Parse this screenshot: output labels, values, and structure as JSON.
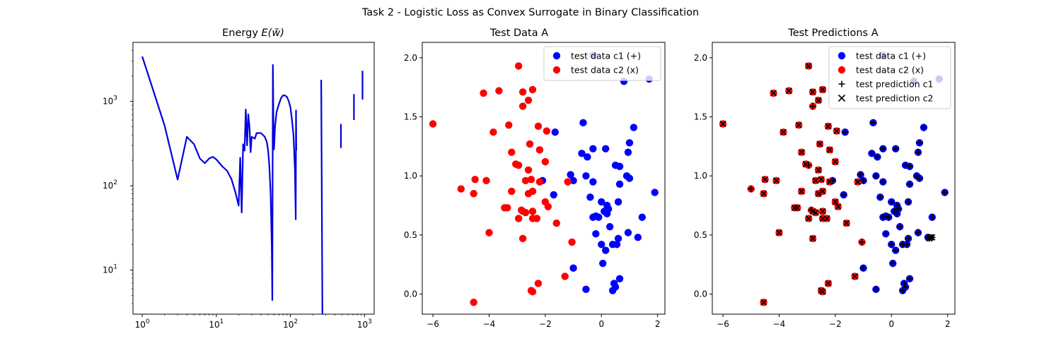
{
  "figure": {
    "suptitle": "Task 2 - Logistic Loss as Convex Surrogate in Binary Classification"
  },
  "colors": {
    "c1": "#0000ff",
    "c2": "#ff0000",
    "pred": "#000000",
    "energy": "#0000dd"
  },
  "chart_data": [
    {
      "type": "line",
      "title": "Energy E(w̃)",
      "title_main": "Energy ",
      "title_math": "E(w̃)",
      "xscale": "log",
      "yscale": "log",
      "xlim": [
        0.75,
        1350
      ],
      "ylim": [
        3,
        5000
      ],
      "xticks": [
        1,
        10,
        100,
        1000
      ],
      "xtick_labels": [
        {
          "b": "10",
          "e": "0"
        },
        {
          "b": "10",
          "e": "1"
        },
        {
          "b": "10",
          "e": "2"
        },
        {
          "b": "10",
          "e": "3"
        }
      ],
      "yticks": [
        10,
        100,
        1000
      ],
      "ytick_labels": [
        {
          "b": "10",
          "e": "1"
        },
        {
          "b": "10",
          "e": "2"
        },
        {
          "b": "10",
          "e": "3"
        }
      ],
      "segments": [
        [
          [
            1,
            3400
          ],
          [
            2,
            520
          ],
          [
            3,
            118
          ],
          [
            4,
            380
          ],
          [
            5,
            310
          ],
          [
            6,
            210
          ],
          [
            7,
            185
          ],
          [
            8,
            210
          ],
          [
            9,
            220
          ],
          [
            10,
            205
          ],
          [
            12,
            170
          ],
          [
            14,
            150
          ],
          [
            16,
            120
          ],
          [
            18,
            85
          ],
          [
            20,
            58
          ],
          [
            21,
            215
          ],
          [
            22,
            48
          ],
          [
            23,
            310
          ],
          [
            24,
            260
          ],
          [
            25,
            800
          ],
          [
            26,
            300
          ],
          [
            27,
            700
          ],
          [
            28,
            500
          ],
          [
            29,
            250
          ],
          [
            30,
            380
          ],
          [
            33,
            360
          ],
          [
            35,
            420
          ],
          [
            40,
            420
          ],
          [
            45,
            380
          ],
          [
            48,
            330
          ],
          [
            50,
            260
          ],
          [
            52,
            170
          ],
          [
            54,
            80
          ],
          [
            56,
            20
          ],
          [
            57,
            4.4
          ],
          [
            58,
            2700
          ],
          [
            59,
            500
          ],
          [
            60,
            270
          ],
          [
            62,
            500
          ],
          [
            65,
            750
          ],
          [
            70,
            930
          ],
          [
            75,
            1100
          ],
          [
            80,
            1180
          ],
          [
            85,
            1170
          ],
          [
            90,
            1120
          ],
          [
            95,
            1000
          ],
          [
            100,
            850
          ],
          [
            105,
            600
          ],
          [
            110,
            400
          ],
          [
            115,
            150
          ],
          [
            118,
            40
          ],
          [
            119,
            780
          ],
          [
            120,
            260
          ]
        ],
        [
          [
            260,
            1800
          ],
          [
            270,
            3
          ]
        ],
        [
          [
            480,
            540
          ],
          [
            480,
            280
          ]
        ],
        [
          [
            720,
            1220
          ],
          [
            720,
            600
          ]
        ],
        [
          [
            940,
            2300
          ],
          [
            940,
            1050
          ]
        ]
      ]
    },
    {
      "type": "scatter",
      "title": "Test Data A",
      "xlim": [
        -6.38,
        2.26
      ],
      "ylim": [
        -0.17,
        2.13
      ],
      "xticks": [
        -6,
        -4,
        -2,
        0,
        2
      ],
      "xtick_labels": [
        "−6",
        "−4",
        "−2",
        "0",
        "2"
      ],
      "yticks": [
        0.0,
        0.5,
        1.0,
        1.5,
        2.0
      ],
      "ytick_labels": [
        "0.0",
        "0.5",
        "1.0",
        "1.5",
        "2.0"
      ],
      "legend": [
        "test data c1 (+)",
        "test data c2 (x)"
      ],
      "series": [
        {
          "name": "test data c1 (+)",
          "points": [
            [
              -0.3,
              2.02
            ],
            [
              1.7,
              1.82
            ],
            [
              0.8,
              1.8
            ],
            [
              -0.65,
              1.45
            ],
            [
              1.15,
              1.41
            ],
            [
              -0.5,
              1.16
            ],
            [
              -0.7,
              1.19
            ],
            [
              -0.3,
              1.23
            ],
            [
              0.15,
              1.23
            ],
            [
              1.0,
              1.28
            ],
            [
              -1.65,
              1.37
            ],
            [
              0.95,
              1.2
            ],
            [
              0.5,
              1.09
            ],
            [
              0.65,
              1.08
            ],
            [
              -2.1,
              0.96
            ],
            [
              -1.1,
              1.01
            ],
            [
              -0.55,
              1.0
            ],
            [
              0.9,
              1.0
            ],
            [
              1.0,
              0.98
            ],
            [
              0.65,
              0.93
            ],
            [
              -0.3,
              0.95
            ],
            [
              -1.0,
              0.96
            ],
            [
              1.9,
              0.86
            ],
            [
              -1.7,
              0.84
            ],
            [
              -0.4,
              0.82
            ],
            [
              0.0,
              0.78
            ],
            [
              0.6,
              0.78
            ],
            [
              0.2,
              0.75
            ],
            [
              0.25,
              0.72
            ],
            [
              0.1,
              0.7
            ],
            [
              0.2,
              0.68
            ],
            [
              1.45,
              0.65
            ],
            [
              -0.3,
              0.65
            ],
            [
              -0.2,
              0.66
            ],
            [
              -0.1,
              0.65
            ],
            [
              0.3,
              0.57
            ],
            [
              0.95,
              0.52
            ],
            [
              -0.2,
              0.51
            ],
            [
              0.6,
              0.47
            ],
            [
              1.3,
              0.48
            ],
            [
              0.0,
              0.42
            ],
            [
              0.4,
              0.42
            ],
            [
              0.55,
              0.42
            ],
            [
              0.15,
              0.37
            ],
            [
              0.05,
              0.26
            ],
            [
              -1.0,
              0.22
            ],
            [
              0.65,
              0.13
            ],
            [
              0.45,
              0.09
            ],
            [
              0.5,
              0.06
            ],
            [
              -0.55,
              0.04
            ],
            [
              0.4,
              0.03
            ]
          ]
        },
        {
          "name": "test data c2 (x)",
          "points": [
            [
              -6.0,
              1.44
            ],
            [
              -2.95,
              1.93
            ],
            [
              -2.45,
              1.73
            ],
            [
              -4.2,
              1.7
            ],
            [
              -3.65,
              1.72
            ],
            [
              -2.8,
              1.71
            ],
            [
              -2.6,
              1.64
            ],
            [
              -2.8,
              1.59
            ],
            [
              -3.3,
              1.43
            ],
            [
              -3.85,
              1.37
            ],
            [
              -2.25,
              1.42
            ],
            [
              -1.95,
              1.38
            ],
            [
              -2.55,
              1.27
            ],
            [
              -2.2,
              1.22
            ],
            [
              -3.2,
              1.2
            ],
            [
              -2.0,
              1.12
            ],
            [
              -2.95,
              1.09
            ],
            [
              -3.05,
              1.1
            ],
            [
              -2.6,
              1.05
            ],
            [
              -2.7,
              0.96
            ],
            [
              -2.5,
              0.97
            ],
            [
              -4.5,
              0.97
            ],
            [
              -4.1,
              0.96
            ],
            [
              -2.2,
              0.95
            ],
            [
              -1.2,
              0.95
            ],
            [
              -5.0,
              0.89
            ],
            [
              -3.2,
              0.87
            ],
            [
              -2.45,
              0.87
            ],
            [
              -2.6,
              0.85
            ],
            [
              -4.55,
              0.85
            ],
            [
              -2.0,
              0.78
            ],
            [
              -1.9,
              0.74
            ],
            [
              -3.45,
              0.73
            ],
            [
              -3.35,
              0.73
            ],
            [
              -2.85,
              0.71
            ],
            [
              -2.8,
              0.7
            ],
            [
              -2.7,
              0.69
            ],
            [
              -2.45,
              0.7
            ],
            [
              -2.95,
              0.64
            ],
            [
              -2.45,
              0.64
            ],
            [
              -2.3,
              0.64
            ],
            [
              -1.6,
              0.6
            ],
            [
              -4.0,
              0.52
            ],
            [
              -1.05,
              0.44
            ],
            [
              -2.8,
              0.47
            ],
            [
              -1.3,
              0.15
            ],
            [
              -2.25,
              0.09
            ],
            [
              -2.5,
              0.03
            ],
            [
              -2.45,
              0.02
            ],
            [
              -4.55,
              -0.07
            ]
          ]
        }
      ]
    },
    {
      "type": "scatter",
      "title": "Test Predictions A",
      "xlim": [
        -6.38,
        2.26
      ],
      "ylim": [
        -0.17,
        2.13
      ],
      "xticks": [
        -6,
        -4,
        -2,
        0,
        2
      ],
      "xtick_labels": [
        "−6",
        "−4",
        "−2",
        "0",
        "2"
      ],
      "yticks": [
        0.0,
        0.5,
        1.0,
        1.5,
        2.0
      ],
      "ytick_labels": [
        "0.0",
        "0.5",
        "1.0",
        "1.5",
        "2.0"
      ],
      "legend": [
        "test data c1 (+)",
        "test data c2 (x)",
        "test prediction c1",
        "test prediction c2"
      ],
      "overlay": [
        [
          1.4,
          0.48
        ],
        [
          1.45,
          0.48
        ],
        [
          1.35,
          0.47
        ]
      ]
    }
  ]
}
